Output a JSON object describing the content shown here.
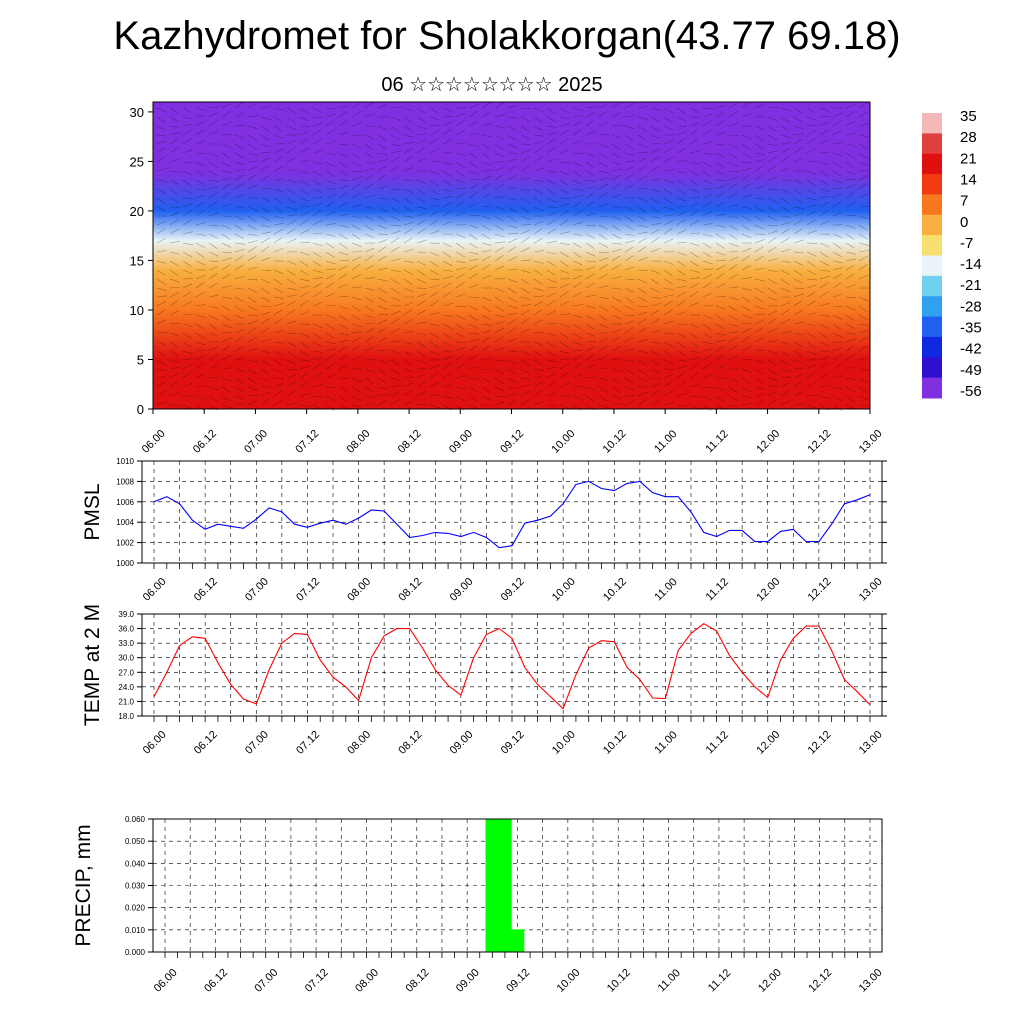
{
  "title": "Kazhydromet for Sholakkorgan(43.77 69.18)",
  "subtitle": "06 ☆☆☆☆☆☆☆☆ 2025",
  "x_ticks": [
    "06.00",
    "06.12",
    "07.00",
    "07.12",
    "08.00",
    "08.12",
    "09.00",
    "09.12",
    "10.00",
    "10.12",
    "11.00",
    "11.12",
    "12.00",
    "12.12",
    "13.00"
  ],
  "chart_data": [
    {
      "type": "heatmap",
      "ylim": [
        0,
        31
      ],
      "y_ticks": [
        "0",
        "5",
        "10",
        "15",
        "20",
        "25",
        "30"
      ],
      "colorbar": {
        "labels": [
          "35",
          "28",
          "21",
          "14",
          "7",
          "0",
          "-7",
          "-14",
          "-21",
          "-28",
          "-35",
          "-42",
          "-49",
          "-56"
        ],
        "colors": [
          "#f4b8b8",
          "#e04040",
          "#e01010",
          "#f03a10",
          "#f87820",
          "#f8b040",
          "#f8e070",
          "#e8f4f8",
          "#70d0f0",
          "#30a0f0",
          "#2060f0",
          "#1028e0",
          "#3010d0",
          "#8030e0"
        ]
      },
      "layers": [
        {
          "height": 0,
          "value": 24
        },
        {
          "height": 5,
          "value": 21
        },
        {
          "height": 10,
          "value": 12
        },
        {
          "height": 14,
          "value": 0
        },
        {
          "height": 17,
          "value": -14
        },
        {
          "height": 20,
          "value": -30
        },
        {
          "height": 24,
          "value": -52
        },
        {
          "height": 28,
          "value": -58
        },
        {
          "height": 31,
          "value": -58
        }
      ]
    },
    {
      "type": "line",
      "ylabel": "PMSL",
      "ylim": [
        1000,
        1010
      ],
      "y_ticks": [
        "1000",
        "1002",
        "1004",
        "1006",
        "1008",
        "1010"
      ],
      "series": [
        {
          "color": "#0000ff",
          "values": [
            1006.0,
            1006.5,
            1005.8,
            1004.2,
            1003.3,
            1003.8,
            1003.6,
            1003.4,
            1004.3,
            1005.4,
            1005.0,
            1003.8,
            1003.5,
            1003.9,
            1004.2,
            1003.8,
            1004.4,
            1005.2,
            1005.1,
            1003.8,
            1002.5,
            1002.7,
            1003.0,
            1002.9,
            1002.6,
            1003.0,
            1002.5,
            1001.5,
            1001.7,
            1003.9,
            1004.2,
            1004.6,
            1005.8,
            1007.7,
            1008.0,
            1007.3,
            1007.1,
            1007.8,
            1008.0,
            1006.9,
            1006.5,
            1006.5,
            1005.0,
            1003.0,
            1002.6,
            1003.2,
            1003.2,
            1002.1,
            1002.1,
            1003.1,
            1003.3,
            1002.1,
            1002.1,
            1003.8,
            1005.8,
            1006.2,
            1006.7
          ]
        }
      ]
    },
    {
      "type": "line",
      "ylabel": "TEMP at 2 M",
      "ylim": [
        18,
        39
      ],
      "y_ticks": [
        "18.0",
        "21.0",
        "24.0",
        "27.0",
        "30.0",
        "33.0",
        "36.0",
        "39.0"
      ],
      "series": [
        {
          "color": "#ff0000",
          "values": [
            22.0,
            27.0,
            32.5,
            34.3,
            34.0,
            29.0,
            24.5,
            21.5,
            20.5,
            27.5,
            33.0,
            35.0,
            34.8,
            29.5,
            26.0,
            24.0,
            21.2,
            30.0,
            34.5,
            36.0,
            36.0,
            32.0,
            27.5,
            24.3,
            22.3,
            30.0,
            34.8,
            36.0,
            34.0,
            28.0,
            24.5,
            22.0,
            19.5,
            26.5,
            32.0,
            33.5,
            33.3,
            28.0,
            25.5,
            21.7,
            21.6,
            31.5,
            35.0,
            37.0,
            35.5,
            30.5,
            27.0,
            24.0,
            21.8,
            29.5,
            34.0,
            36.5,
            36.5,
            31.5,
            25.5,
            23.0,
            20.3
          ]
        }
      ]
    },
    {
      "type": "bar",
      "ylabel": "PRECIP, mm",
      "ylim": [
        0,
        0.06
      ],
      "y_ticks": [
        "0.000",
        "0.010",
        "0.020",
        "0.030",
        "0.040",
        "0.050",
        "0.060"
      ],
      "color": "#00ff00",
      "bars": [
        {
          "x": "09.06",
          "value": 0.06
        },
        {
          "x": "09.09",
          "value": 0.06
        },
        {
          "x": "09.12",
          "value": 0.01
        }
      ]
    }
  ]
}
